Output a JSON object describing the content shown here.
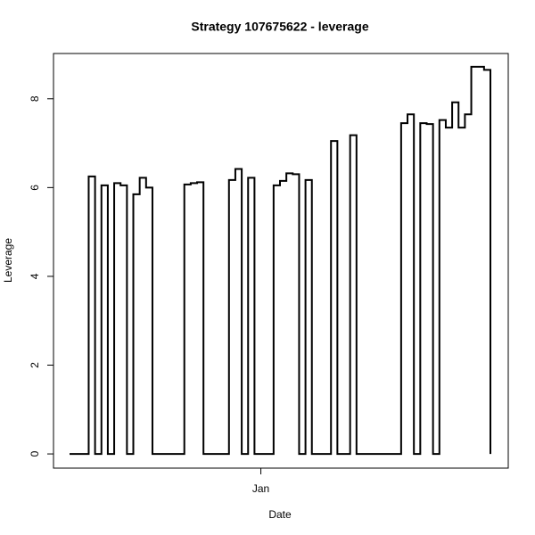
{
  "chart_data": {
    "type": "step",
    "title": "Strategy 107675622 - leverage",
    "x_label": "Date",
    "y_label": "Leverage",
    "categories": [
      null,
      null,
      null,
      null,
      null,
      null,
      null,
      null,
      null,
      null,
      null,
      null,
      null,
      null,
      null,
      null,
      null,
      null,
      null,
      null,
      null,
      null,
      null,
      null,
      null,
      null,
      null,
      null,
      null,
      null,
      "Jan",
      null,
      null,
      null,
      null,
      null,
      null,
      null,
      null,
      null,
      null,
      null,
      null,
      null,
      null,
      null,
      null,
      null,
      null,
      null,
      null,
      null,
      null,
      null,
      null,
      null,
      null,
      null,
      null,
      null,
      null,
      null,
      null,
      null,
      null,
      null,
      null
    ],
    "values": [
      0,
      0,
      0,
      6.25,
      0,
      6.05,
      0,
      6.1,
      6.05,
      0,
      5.85,
      6.22,
      6.0,
      0,
      0,
      0,
      0,
      0,
      6.07,
      6.1,
      6.12,
      0,
      0,
      0,
      0,
      6.17,
      6.42,
      0,
      6.22,
      0,
      0,
      0,
      6.05,
      6.15,
      6.32,
      6.3,
      0,
      6.17,
      0,
      0,
      0,
      7.05,
      0,
      0,
      7.18,
      0,
      0,
      0,
      0,
      0,
      0,
      0,
      7.45,
      7.65,
      0,
      7.45,
      7.43,
      0,
      7.52,
      7.35,
      7.92,
      7.35,
      7.65,
      8.72,
      8.72,
      8.65,
      0
    ],
    "color": "#000000",
    "ylim": [
      -0.32,
      9.02
    ],
    "yticks": [
      0,
      2,
      4,
      6,
      8
    ]
  }
}
